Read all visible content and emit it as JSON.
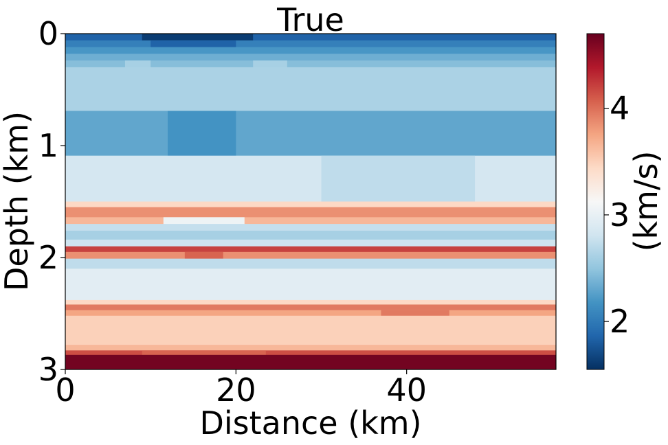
{
  "chart_data": {
    "type": "heatmap",
    "title": "True",
    "xlabel": "Distance (km)",
    "ylabel": "Depth (km)",
    "xlim": [
      0,
      57.5
    ],
    "ylim": [
      3,
      0
    ],
    "xticks": [
      0,
      20,
      40
    ],
    "yticks": [
      0,
      1,
      2,
      3
    ],
    "colorbar": {
      "label": "(km/s)",
      "colormap": "RdBu_r",
      "vmin": 1.55,
      "vmax": 4.7,
      "ticks": [
        2,
        3,
        4
      ]
    },
    "layers": [
      {
        "z0": 0.0,
        "z1": 0.06,
        "v": 1.85,
        "var": [
          {
            "x0": 9,
            "x1": 22,
            "v": 1.62
          }
        ]
      },
      {
        "z0": 0.06,
        "z1": 0.12,
        "v": 2.05,
        "var": [
          {
            "x0": 10,
            "x1": 20,
            "v": 1.85
          }
        ]
      },
      {
        "z0": 0.12,
        "z1": 0.18,
        "v": 2.2
      },
      {
        "z0": 0.18,
        "z1": 0.24,
        "v": 2.35
      },
      {
        "z0": 0.24,
        "z1": 0.3,
        "v": 2.45,
        "var": [
          {
            "x0": 7,
            "x1": 10,
            "v": 2.6
          },
          {
            "x0": 22,
            "x1": 26,
            "v": 2.6
          }
        ]
      },
      {
        "z0": 0.3,
        "z1": 0.69,
        "v": 2.62
      },
      {
        "z0": 0.69,
        "z1": 1.09,
        "v": 2.3,
        "var": [
          {
            "x0": 12,
            "x1": 20,
            "v": 2.18
          }
        ]
      },
      {
        "z0": 1.09,
        "z1": 1.5,
        "v": 2.84,
        "var": [
          {
            "x0": 30,
            "x1": 48,
            "v": 2.72
          }
        ]
      },
      {
        "z0": 1.5,
        "z1": 1.55,
        "v": 3.45
      },
      {
        "z0": 1.55,
        "z1": 1.64,
        "v": 3.85
      },
      {
        "z0": 1.64,
        "z1": 1.7,
        "v": 3.65,
        "var": [
          {
            "x0": 11.5,
            "x1": 21,
            "v": 3.05
          }
        ]
      },
      {
        "z0": 1.7,
        "z1": 1.76,
        "v": 2.75
      },
      {
        "z0": 1.76,
        "z1": 1.84,
        "v": 2.6
      },
      {
        "z0": 1.84,
        "z1": 1.9,
        "v": 2.8
      },
      {
        "z0": 1.9,
        "z1": 1.95,
        "v": 4.2
      },
      {
        "z0": 1.95,
        "z1": 2.01,
        "v": 3.85,
        "var": [
          {
            "x0": 14,
            "x1": 18.5,
            "v": 4.05
          }
        ]
      },
      {
        "z0": 2.01,
        "z1": 2.1,
        "v": 2.72
      },
      {
        "z0": 2.1,
        "z1": 2.38,
        "v": 2.95
      },
      {
        "z0": 2.38,
        "z1": 2.42,
        "v": 3.45
      },
      {
        "z0": 2.42,
        "z1": 2.47,
        "v": 3.95
      },
      {
        "z0": 2.47,
        "z1": 2.52,
        "v": 3.75,
        "var": [
          {
            "x0": 37,
            "x1": 45,
            "v": 3.95
          }
        ]
      },
      {
        "z0": 2.52,
        "z1": 2.78,
        "v": 3.5
      },
      {
        "z0": 2.78,
        "z1": 2.83,
        "v": 3.65
      },
      {
        "z0": 2.83,
        "z1": 2.87,
        "v": 4.15,
        "var": [
          {
            "x0": 9,
            "x1": 23.5,
            "v": 4.05
          }
        ]
      },
      {
        "z0": 2.87,
        "z1": 3.0,
        "v": 4.65
      }
    ]
  }
}
